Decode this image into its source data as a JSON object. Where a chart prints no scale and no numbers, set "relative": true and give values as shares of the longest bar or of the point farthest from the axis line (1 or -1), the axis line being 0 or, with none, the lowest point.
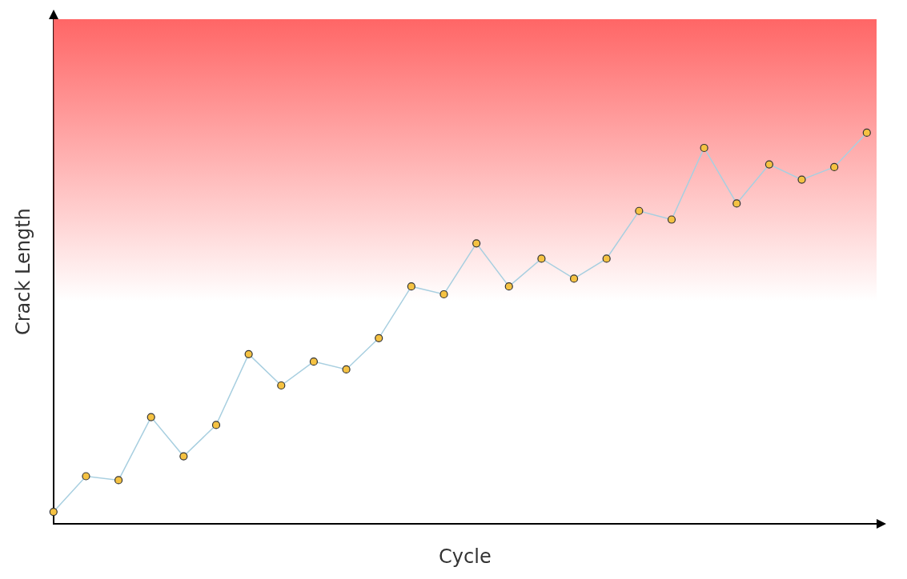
{
  "chart_data": {
    "type": "line",
    "xlabel": "Cycle",
    "ylabel": "Crack Length",
    "relative": true,
    "categories": [
      null,
      null,
      null,
      null,
      null,
      null,
      null,
      null,
      null,
      null,
      null,
      null,
      null,
      null,
      null,
      null,
      null,
      null,
      null,
      null,
      null,
      null,
      null,
      null,
      null,
      null
    ],
    "series": [
      {
        "color": "#a8cfe0",
        "values": [
          0.031,
          0.122,
          0.112,
          0.273,
          0.173,
          0.253,
          0.434,
          0.354,
          0.415,
          0.395,
          0.475,
          0.607,
          0.587,
          0.717,
          0.607,
          0.678,
          0.627,
          0.678,
          0.8,
          0.778,
          0.961,
          0.819,
          0.919,
          0.88,
          0.912,
          1
        ]
      }
    ],
    "marker": "circle",
    "grid": false,
    "legend": false,
    "bands": [
      {
        "axis": "y",
        "from": 0.57,
        "to": 1.29,
        "color": "#ff6666"
      }
    ]
  }
}
